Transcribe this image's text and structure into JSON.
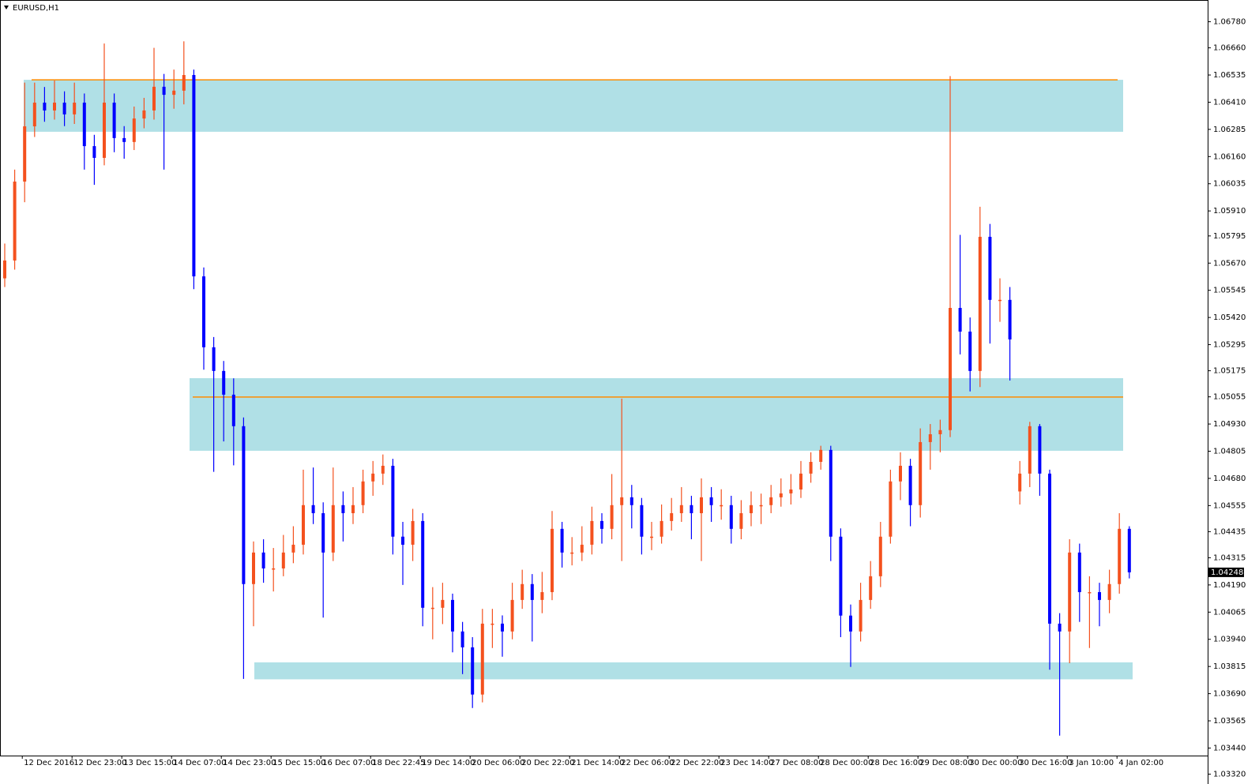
{
  "chart_data": {
    "type": "candlestick",
    "title": "EURUSD,H1",
    "up_color": "#f4511e",
    "down_color": "#0000ff",
    "zone_color": "#b0e0e6",
    "level_color": "#ff8c00",
    "ylim": [
      1.033,
      1.0688
    ],
    "yticks": [
      {
        "value": 1.0678,
        "label": "1.06780"
      },
      {
        "value": 1.0666,
        "label": "1.06660"
      },
      1.06535,
      {
        "value": 1.0641,
        "label": "1.06410"
      },
      1.06285,
      {
        "value": 1.0616,
        "label": "1.06160"
      },
      1.06035,
      {
        "value": 1.0591,
        "label": "1.05910"
      },
      1.05795,
      {
        "value": 1.0567,
        "label": "1.05670"
      },
      1.05545,
      {
        "value": 1.0542,
        "label": "1.05420"
      },
      1.05295,
      1.05175,
      1.05055,
      {
        "value": 1.0493,
        "label": "1.04930"
      },
      1.04805,
      {
        "value": 1.0468,
        "label": "1.04680"
      },
      1.04555,
      1.04435,
      1.04315,
      {
        "value": 1.0419,
        "label": "1.04190"
      },
      1.04065,
      {
        "value": 1.0394,
        "label": "1.03940"
      },
      1.03815,
      {
        "value": 1.0369,
        "label": "1.03690"
      },
      1.03565,
      {
        "value": 1.0344,
        "label": "1.03440"
      },
      {
        "value": 1.0332,
        "label": "1.03320"
      }
    ],
    "last_price": 1.04248,
    "zones": [
      {
        "low": 1.06274,
        "high": 1.06513
      },
      {
        "low": 1.04807,
        "high": 1.05141
      },
      {
        "low": 1.03756,
        "high": 1.03834
      }
    ],
    "levels": [
      1.06513,
      1.05054
    ],
    "categories": [
      null,
      null,
      "12 Dec 2016",
      null,
      null,
      null,
      null,
      "12 Dec 23:00",
      null,
      null,
      null,
      null,
      "13 Dec 15:00",
      null,
      null,
      null,
      null,
      "14 Dec 07:00",
      null,
      null,
      null,
      null,
      "14 Dec 23:00",
      null,
      null,
      null,
      null,
      "15 Dec 15:00",
      null,
      null,
      null,
      null,
      "16 Dec 07:00",
      null,
      null,
      null,
      null,
      "18 Dec 22:45",
      null,
      null,
      null,
      null,
      "19 Dec 14:00",
      null,
      null,
      null,
      null,
      "20 Dec 06:00",
      null,
      null,
      null,
      null,
      "20 Dec 22:00",
      null,
      null,
      null,
      null,
      "21 Dec 14:00",
      null,
      null,
      null,
      null,
      "22 Dec 06:00",
      null,
      null,
      null,
      null,
      "22 Dec 22:00",
      null,
      null,
      null,
      null,
      "23 Dec 14:00",
      null,
      null,
      null,
      null,
      "27 Dec 08:00",
      null,
      null,
      null,
      null,
      "28 Dec 00:00",
      null,
      null,
      null,
      null,
      "28 Dec 16:00",
      null,
      null,
      null,
      null,
      "29 Dec 08:00",
      null,
      null,
      null,
      null,
      "30 Dec 00:00",
      null,
      null,
      null,
      null,
      "30 Dec 16:00",
      null,
      null,
      null,
      null,
      "3 Jan 10:00",
      null,
      null,
      null,
      null,
      "4 Jan 02:00",
      null
    ],
    "open": [
      1.056,
      1.05682,
      1.06045,
      1.06299,
      1.06408,
      1.06372,
      1.06408,
      1.06354,
      1.06408,
      1.06208,
      1.06154,
      1.06408,
      1.06245,
      1.06227,
      1.06335,
      1.06372,
      1.06481,
      1.06444,
      1.06463,
      1.06535,
      1.05609,
      1.05283,
      1.05174,
      1.05065,
      1.0492,
      1.04194,
      1.04339,
      1.04266,
      1.04266,
      1.04339,
      1.04375,
      1.04557,
      1.0452,
      1.04339,
      1.04557,
      1.0452,
      1.04557,
      1.04666,
      1.04702,
      1.04738,
      1.04412,
      1.04375,
      1.04484,
      1.04085,
      1.04085,
      1.04121,
      1.03976,
      1.03903,
      1.03686,
      1.04012,
      1.04012,
      1.03976,
      1.04121,
      1.04194,
      1.04121,
      1.04157,
      1.04448,
      1.04339,
      1.04339,
      1.04375,
      1.04484,
      1.04448,
      1.04557,
      1.04593,
      1.04557,
      1.04412,
      1.04412,
      1.04484,
      1.0452,
      1.04557,
      1.0452,
      1.04593,
      1.04557,
      1.04557,
      1.04448,
      1.0452,
      1.04557,
      1.04557,
      1.04593,
      1.04611,
      1.04629,
      1.04702,
      1.04756,
      1.04811,
      1.04412,
      1.04049,
      1.03976,
      1.04121,
      1.0423,
      1.04412,
      1.04666,
      1.04738,
      1.04557,
      1.04847,
      1.04883,
      1.04902,
      1.05464,
      1.05355,
      1.05174,
      1.05791,
      1.05501,
      1.05501,
      1.0462,
      1.04702,
      1.0492,
      1.04702,
      1.04012,
      1.03976,
      1.04339,
      1.04157,
      1.04157,
      1.04121,
      1.04194,
      1.04448
    ],
    "high": [
      1.0576,
      1.061,
      1.065,
      1.065,
      1.0648,
      1.0651,
      1.0646,
      1.065,
      1.0645,
      1.0626,
      1.0668,
      1.0645,
      1.063,
      1.0639,
      1.0643,
      1.0666,
      1.0654,
      1.0656,
      1.0669,
      1.0656,
      1.0565,
      1.0533,
      1.0522,
      1.0514,
      1.0496,
      1.0439,
      1.044,
      1.0436,
      1.0442,
      1.0446,
      1.0472,
      1.0473,
      1.0457,
      1.0473,
      1.0462,
      1.0464,
      1.0472,
      1.0476,
      1.0479,
      1.0477,
      1.0448,
      1.0454,
      1.0452,
      1.0418,
      1.042,
      1.0415,
      1.0402,
      1.0395,
      1.0408,
      1.0408,
      1.0405,
      1.042,
      1.0426,
      1.0424,
      1.0425,
      1.0453,
      1.0448,
      1.0441,
      1.0446,
      1.0455,
      1.0452,
      1.047,
      1.05047,
      1.0465,
      1.0459,
      1.0448,
      1.0456,
      1.0459,
      1.0464,
      1.046,
      1.0468,
      1.0464,
      1.0463,
      1.046,
      1.0458,
      1.0462,
      1.0461,
      1.0465,
      1.0468,
      1.047,
      1.0476,
      1.048,
      1.0483,
      1.0483,
      1.0445,
      1.041,
      1.042,
      1.043,
      1.0448,
      1.0472,
      1.048,
      1.0477,
      1.0491,
      1.0493,
      1.0495,
      1.0653,
      1.058,
      1.0542,
      1.05929,
      1.0585,
      1.056,
      1.0556,
      1.0476,
      1.0494,
      1.0493,
      1.0472,
      1.0406,
      1.044,
      1.0438,
      1.0423,
      1.042,
      1.0426,
      1.0452,
      1.0446
    ],
    "low": [
      1.0556,
      1.0564,
      1.0595,
      1.0625,
      1.0632,
      1.0633,
      1.063,
      1.0631,
      1.061,
      1.0603,
      1.0612,
      1.0618,
      1.0615,
      1.0619,
      1.0629,
      1.0633,
      1.061,
      1.0638,
      1.064,
      1.0555,
      1.0518,
      1.0471,
      1.0485,
      1.0474,
      1.03758,
      1.04,
      1.042,
      1.0416,
      1.0423,
      1.0429,
      1.0433,
      1.0447,
      1.0404,
      1.043,
      1.0439,
      1.0447,
      1.0452,
      1.046,
      1.0465,
      1.0433,
      1.0419,
      1.043,
      1.04,
      1.0394,
      1.0401,
      1.0388,
      1.0378,
      1.03624,
      1.0365,
      1.039,
      1.0386,
      1.0394,
      1.0408,
      1.0393,
      1.0406,
      1.0412,
      1.0427,
      1.0428,
      1.043,
      1.0433,
      1.0438,
      1.044,
      1.043,
      1.0445,
      1.0433,
      1.0435,
      1.0438,
      1.0444,
      1.0448,
      1.044,
      1.043,
      1.0448,
      1.0449,
      1.0438,
      1.044,
      1.0446,
      1.0447,
      1.0452,
      1.0455,
      1.0456,
      1.0459,
      1.0466,
      1.0472,
      1.043,
      1.0395,
      1.03813,
      1.0393,
      1.0408,
      1.0418,
      1.0438,
      1.0458,
      1.0446,
      1.045,
      1.0472,
      1.048,
      1.0487,
      1.0525,
      1.0508,
      1.051,
      1.053,
      1.054,
      1.0513,
      1.0456,
      1.0464,
      1.046,
      1.038,
      1.03497,
      1.0383,
      1.0402,
      1.039,
      1.04,
      1.0406,
      1.0415,
      1.0422
    ],
    "close": [
      1.05682,
      1.06045,
      1.06299,
      1.06408,
      1.06372,
      1.06408,
      1.06354,
      1.06408,
      1.06208,
      1.06154,
      1.06408,
      1.06245,
      1.06227,
      1.06335,
      1.06372,
      1.06481,
      1.06444,
      1.06463,
      1.06535,
      1.05609,
      1.05283,
      1.05174,
      1.05065,
      1.0492,
      1.04194,
      1.04339,
      1.04266,
      1.04266,
      1.04339,
      1.04375,
      1.04557,
      1.0452,
      1.04339,
      1.04557,
      1.0452,
      1.04557,
      1.04666,
      1.04702,
      1.04738,
      1.04412,
      1.04375,
      1.04484,
      1.04085,
      1.04085,
      1.04121,
      1.03976,
      1.03903,
      1.03686,
      1.04012,
      1.04012,
      1.03976,
      1.04121,
      1.04194,
      1.04121,
      1.04157,
      1.04448,
      1.04339,
      1.04339,
      1.04375,
      1.04484,
      1.04448,
      1.04557,
      1.04593,
      1.04557,
      1.04412,
      1.04412,
      1.04484,
      1.0452,
      1.04557,
      1.0452,
      1.04593,
      1.04557,
      1.04557,
      1.04448,
      1.0452,
      1.04557,
      1.04557,
      1.04593,
      1.04611,
      1.04629,
      1.04702,
      1.04756,
      1.04811,
      1.04412,
      1.04049,
      1.03976,
      1.04121,
      1.0423,
      1.04412,
      1.04666,
      1.04738,
      1.04557,
      1.04847,
      1.04883,
      1.04902,
      1.05464,
      1.05355,
      1.05174,
      1.05791,
      1.05501,
      1.05501,
      1.05319,
      1.04702,
      1.0492,
      1.04702,
      1.04012,
      1.03976,
      1.04339,
      1.04157,
      1.04157,
      1.04121,
      1.04194,
      1.04448,
      1.04248
    ]
  }
}
